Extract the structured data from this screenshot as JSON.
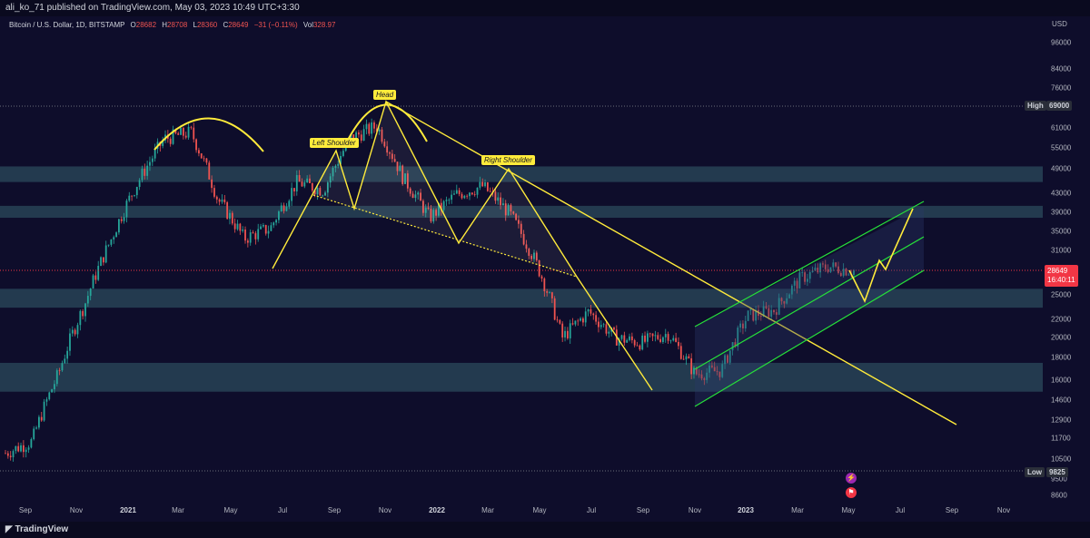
{
  "header": {
    "published": "ali_ko_71 published on TradingView.com, May 03, 2023 10:49 UTC+3:30"
  },
  "legend": {
    "symbol": "Bitcoin / U.S. Dollar, 1D, BITSTAMP",
    "o_label": "O",
    "o_value": "28682",
    "h_label": "H",
    "h_value": "28708",
    "l_label": "L",
    "l_value": "28360",
    "c_label": "C",
    "c_value": "28649",
    "change": "−31 (−0.11%)",
    "vol_label": "Vol",
    "vol_value": "328.97"
  },
  "price_axis": {
    "currency": "USD",
    "labels": [
      "96000",
      "84000",
      "76000",
      "61000",
      "55000",
      "49000",
      "43000",
      "39000",
      "35000",
      "31000",
      "25000",
      "22000",
      "20000",
      "18000",
      "16000",
      "14600",
      "12900",
      "11700",
      "10500",
      "9500",
      "8600"
    ],
    "high_label": "High",
    "high_value": "69000",
    "low_label": "Low",
    "low_value": "9825",
    "current_price": "28649",
    "countdown": "16:40:11"
  },
  "time_axis": {
    "labels": [
      "Sep",
      "Nov",
      "2021",
      "Mar",
      "May",
      "Jul",
      "Sep",
      "Nov",
      "2022",
      "Mar",
      "May",
      "Jul",
      "Sep",
      "Nov",
      "2023",
      "Mar",
      "May",
      "Jul",
      "Sep",
      "Nov"
    ]
  },
  "annotations": {
    "head": "Head",
    "left_shoulder": "Left Shoulder",
    "right_shoulder": "Right Shoulder"
  },
  "footer": {
    "brand": "TradingView"
  },
  "colors": {
    "background": "#0e0d2b",
    "zone": "#2b4a5c",
    "pattern_line": "#ffeb3b",
    "channel_line": "#26e03a",
    "candle_up": "#26a69a",
    "candle_down": "#ef5350",
    "price_tag": "#f23645"
  },
  "icons": {
    "footer_logo": "tradingview-logo-icon",
    "event_1": "lightning-icon",
    "event_2": "flag-icon"
  },
  "chart_data": {
    "type": "candlestick",
    "series": [
      {
        "name": "Bitcoin / U.S. Dollar",
        "x": [
          "2020-09",
          "2020-10",
          "2020-11",
          "2020-12",
          "2021-01",
          "2021-02",
          "2021-03",
          "2021-04",
          "2021-05",
          "2021-06",
          "2021-07",
          "2021-08",
          "2021-09",
          "2021-10",
          "2021-11",
          "2021-12",
          "2022-01",
          "2022-02",
          "2022-03",
          "2022-04",
          "2022-05",
          "2022-06",
          "2022-07",
          "2022-08",
          "2022-09",
          "2022-10",
          "2022-11",
          "2022-12",
          "2023-01",
          "2023-02",
          "2023-03",
          "2023-04",
          "2023-05"
        ],
        "values": [
          10800,
          11500,
          16500,
          24000,
          34000,
          46000,
          58000,
          60000,
          42000,
          34000,
          36000,
          46000,
          44000,
          58000,
          62000,
          47000,
          38000,
          43000,
          45000,
          39000,
          30000,
          20000,
          23000,
          20000,
          19500,
          20500,
          16500,
          16800,
          22500,
          23200,
          27500,
          29300,
          28649
        ]
      }
    ],
    "zones": [
      [
        46000,
        50000
      ],
      [
        38000,
        40500
      ],
      [
        23500,
        26000
      ],
      [
        15000,
        17500
      ]
    ],
    "ylim": [
      8000,
      110000
    ],
    "y_scale": "log",
    "high": 69000,
    "low": 9825,
    "last": 28649,
    "grid": false
  }
}
